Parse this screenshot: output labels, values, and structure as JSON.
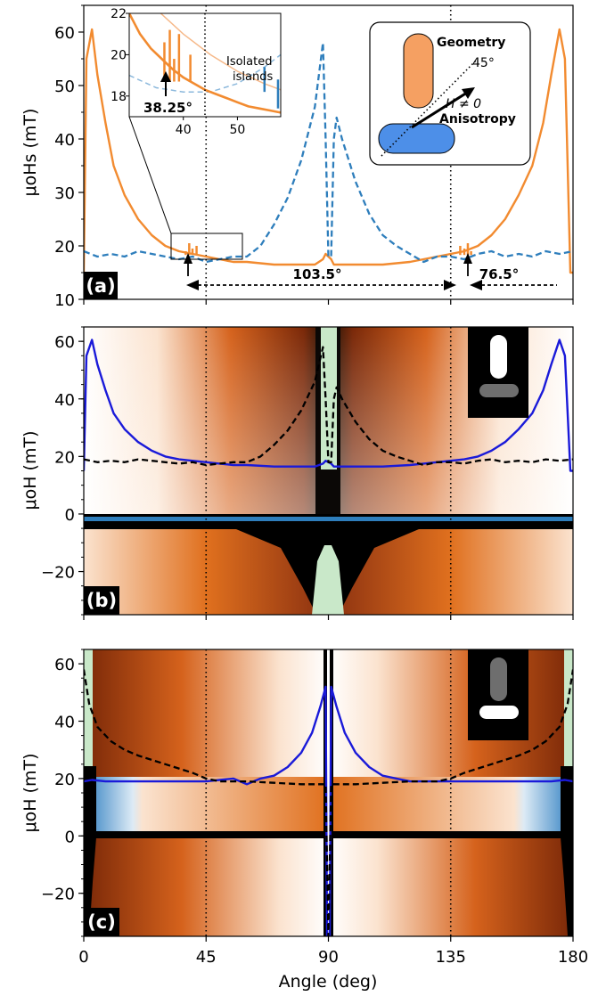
{
  "figure": {
    "xlabel": "Angle (deg)",
    "xticks": [
      "0",
      "45",
      "90",
      "135",
      "180"
    ]
  },
  "colors": {
    "orange": "#f28b30",
    "blue_dash": "#2e7ebc",
    "geom_blue": "#4d8fe8",
    "geom_orange": "#f5a062",
    "curve_blue": "#1a1ad9",
    "green": "#c9e8c9"
  },
  "chart_data": [
    {
      "type": "line",
      "panel": "(a)",
      "ylabel": "μoHs (mT)",
      "xlim": [
        0,
        180
      ],
      "ylim": [
        10,
        65
      ],
      "yticks": [
        "10",
        "20",
        "30",
        "40",
        "50",
        "60"
      ],
      "series": [
        {
          "color": "orange",
          "style": "solid",
          "x": [
            0,
            1,
            3,
            5,
            8,
            11,
            15,
            20,
            25,
            30,
            35,
            40,
            45,
            50,
            55,
            60,
            70,
            80,
            85,
            88,
            89,
            91,
            92,
            95,
            100,
            110,
            120,
            125,
            130,
            135,
            140,
            145,
            150,
            155,
            160,
            165,
            169,
            172,
            175,
            177,
            179,
            180
          ],
          "y": [
            15,
            55,
            60.5,
            52,
            43,
            35,
            29.5,
            25,
            22,
            20,
            19,
            18.5,
            18,
            17.5,
            17,
            17,
            16.5,
            16.5,
            16.5,
            17.5,
            18.5,
            17.5,
            16.5,
            16.5,
            16.5,
            16.5,
            17,
            17.5,
            18,
            18.5,
            19,
            20,
            22,
            25,
            29.5,
            35,
            43,
            52,
            60.5,
            55,
            15,
            15
          ]
        },
        {
          "color": "blue_dash",
          "style": "dashed",
          "x": [
            0,
            5,
            10,
            15,
            20,
            25,
            30,
            35,
            40,
            45,
            50,
            55,
            60,
            65,
            70,
            75,
            80,
            85,
            88,
            89,
            90,
            91,
            92,
            93,
            95,
            100,
            105,
            110,
            115,
            120,
            125,
            130,
            135,
            140,
            145,
            150,
            155,
            160,
            165,
            170,
            175,
            180
          ],
          "y": [
            19,
            18,
            18.5,
            18,
            19,
            18.5,
            18,
            17.5,
            18,
            17,
            17.5,
            18,
            18,
            20,
            24,
            29,
            36,
            46,
            58,
            40,
            18,
            18,
            40,
            44,
            40,
            32,
            26,
            22,
            20,
            18.5,
            17,
            18,
            18,
            17.5,
            18.5,
            19,
            18,
            18.5,
            18,
            19,
            18.5,
            19
          ]
        }
      ],
      "annotations": {
        "span_long": "103.5°",
        "span_short": "76.5°",
        "label": "(a)"
      },
      "inset": {
        "xlim": [
          30,
          58
        ],
        "ylim": [
          17,
          22
        ],
        "xticks": [
          "40",
          "50"
        ],
        "yticks": [
          "18",
          "20",
          "22"
        ],
        "label": "38.25°",
        "text": [
          "Isolated",
          "islands"
        ],
        "orange": {
          "x": [
            30,
            32,
            34,
            36,
            38,
            40,
            42,
            44,
            46,
            48,
            50,
            52,
            54,
            56,
            58
          ],
          "y": [
            22,
            21,
            20.3,
            19.8,
            19.3,
            18.9,
            18.6,
            18.3,
            18.1,
            17.9,
            17.7,
            17.5,
            17.4,
            17.3,
            17.2
          ]
        },
        "orange_light": {
          "x": [
            30,
            35,
            40,
            45,
            50,
            55,
            58
          ],
          "y": [
            24,
            22.2,
            21,
            20,
            19.2,
            18.6,
            18.3
          ]
        },
        "blue_dash": {
          "x": [
            30,
            35,
            40,
            45,
            50,
            55,
            58
          ],
          "y": [
            19,
            18.4,
            18.2,
            18.2,
            18.6,
            19.4,
            20
          ]
        }
      },
      "legend": {
        "geometry": "Geometry",
        "angle": "45°",
        "field": "H ≠ 0",
        "anisotropy": "Anisotropy"
      }
    },
    {
      "type": "heatmap",
      "panel": "(b)",
      "ylabel": "μoH (mT)",
      "xlim": [
        0,
        180
      ],
      "ylim": [
        -35,
        65
      ],
      "yticks": [
        "−20",
        "0",
        "20",
        "40",
        "60"
      ],
      "series": [
        {
          "color": "curve_blue",
          "style": "solid",
          "x": [
            0,
            1,
            3,
            5,
            8,
            11,
            15,
            20,
            25,
            30,
            35,
            40,
            45,
            50,
            55,
            60,
            70,
            80,
            85,
            88,
            89,
            91,
            92,
            95,
            100,
            110,
            120,
            125,
            130,
            135,
            140,
            145,
            150,
            155,
            160,
            165,
            169,
            172,
            175,
            177,
            179,
            180
          ],
          "y": [
            15,
            55,
            60.5,
            52,
            43,
            35,
            29.5,
            25,
            22,
            20,
            19,
            18.5,
            18,
            17.5,
            17,
            17,
            16.5,
            16.5,
            16.5,
            17.5,
            18.5,
            17.5,
            16.5,
            16.5,
            16.5,
            16.5,
            17,
            17.5,
            18,
            18.5,
            19,
            20,
            22,
            25,
            29.5,
            35,
            43,
            52,
            60.5,
            55,
            15,
            15
          ]
        },
        {
          "color": "black",
          "style": "dashed",
          "x": [
            0,
            5,
            10,
            15,
            20,
            25,
            30,
            35,
            40,
            45,
            50,
            55,
            60,
            65,
            70,
            75,
            80,
            85,
            88,
            89,
            90,
            91,
            92,
            93,
            95,
            100,
            105,
            110,
            115,
            120,
            125,
            130,
            135,
            140,
            145,
            150,
            155,
            160,
            165,
            170,
            175,
            180
          ],
          "y": [
            19,
            18,
            18.5,
            18,
            19,
            18.5,
            18,
            17.5,
            18,
            17,
            17.5,
            18,
            18,
            20,
            24,
            29,
            36,
            46,
            58,
            40,
            18,
            18,
            40,
            44,
            40,
            32,
            26,
            22,
            20,
            18.5,
            17,
            18,
            18,
            17.5,
            18.5,
            19,
            18,
            18.5,
            18,
            19,
            18.5,
            19
          ]
        }
      ],
      "annotations": {
        "label": "(b)"
      }
    },
    {
      "type": "heatmap",
      "panel": "(c)",
      "ylabel": "μoH (mT)",
      "xlim": [
        0,
        180
      ],
      "ylim": [
        -35,
        65
      ],
      "yticks": [
        "−20",
        "0",
        "20",
        "40",
        "60"
      ],
      "series": [
        {
          "color": "curve_blue",
          "style": "solid",
          "x": [
            0,
            3,
            8,
            15,
            25,
            35,
            45,
            55,
            60,
            65,
            70,
            75,
            80,
            84,
            87,
            89,
            89.5,
            90.5,
            91,
            93,
            96,
            100,
            105,
            110,
            115,
            120,
            125,
            135,
            145,
            155,
            165,
            172,
            177,
            180
          ],
          "y": [
            19,
            19.5,
            19,
            19,
            19,
            19,
            19,
            20,
            18,
            20,
            21,
            24,
            29,
            36,
            45,
            52,
            -35,
            -35,
            52,
            45,
            36,
            29,
            24,
            21,
            20,
            19,
            19,
            19,
            19,
            19,
            19,
            19,
            19.5,
            19
          ]
        },
        {
          "color": "black",
          "style": "dashed",
          "x": [
            0,
            2,
            5,
            10,
            15,
            20,
            30,
            40,
            45,
            50,
            60,
            70,
            80,
            89,
            90,
            91,
            100,
            110,
            120,
            130,
            135,
            140,
            150,
            160,
            165,
            170,
            175,
            178,
            180
          ],
          "y": [
            58,
            46,
            38,
            33,
            30,
            28,
            25,
            22,
            20,
            19,
            19,
            18.5,
            18,
            18,
            -35,
            18,
            18,
            18.5,
            19,
            19,
            20,
            22,
            25,
            28,
            30,
            33,
            38,
            46,
            58
          ]
        }
      ],
      "annotations": {
        "label": "(c)"
      }
    }
  ]
}
